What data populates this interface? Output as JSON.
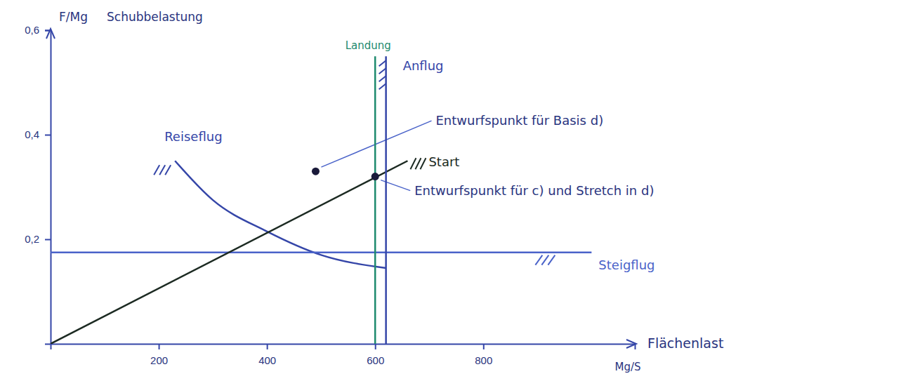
{
  "chart_data": {
    "type": "line",
    "x_title": "Flächenlast",
    "x_label": "Mg/S",
    "y_label": "F/Mg",
    "y_title": "Schubbelastung",
    "xlim": [
      0,
      1080
    ],
    "ylim": [
      0,
      0.6
    ],
    "xticks": [
      200,
      400,
      600,
      800
    ],
    "yticks": [
      {
        "value": 0.2,
        "label": "0,2"
      },
      {
        "value": 0.4,
        "label": "0,4"
      },
      {
        "value": 0.6,
        "label": "0,6"
      }
    ],
    "grid": false,
    "series": [
      {
        "name": "Reiseflug",
        "type": "line",
        "color": "#3546a8",
        "x": [
          230,
          300,
          400,
          500,
          620
        ],
        "values": [
          0.35,
          0.275,
          0.215,
          0.17,
          0.145
        ]
      },
      {
        "name": "Steigflug",
        "type": "line",
        "color": "#4a63c9",
        "x": [
          0,
          1000
        ],
        "values": [
          0.175,
          0.175
        ]
      },
      {
        "name": "Start",
        "type": "line",
        "color": "#1c2a22",
        "x": [
          0,
          660
        ],
        "values": [
          0,
          0.35
        ]
      },
      {
        "name": "Landung",
        "type": "line",
        "color": "#1e8a6e",
        "x": [
          600,
          600
        ],
        "values": [
          0,
          0.55
        ]
      },
      {
        "name": "Anflug",
        "type": "line",
        "color": "#3546a8",
        "x": [
          620,
          620
        ],
        "values": [
          0,
          0.55
        ]
      },
      {
        "name": "Entwurfspunkt für Basis d)",
        "type": "scatter",
        "marker": "circle",
        "color": "#1a1a3a",
        "x": [
          490
        ],
        "values": [
          0.33
        ]
      },
      {
        "name": "Entwurfspunkt für c) und Stretch in d)",
        "type": "scatter",
        "marker": "circle",
        "color": "#1a1a3a",
        "x": [
          600
        ],
        "values": [
          0.32
        ]
      }
    ]
  }
}
